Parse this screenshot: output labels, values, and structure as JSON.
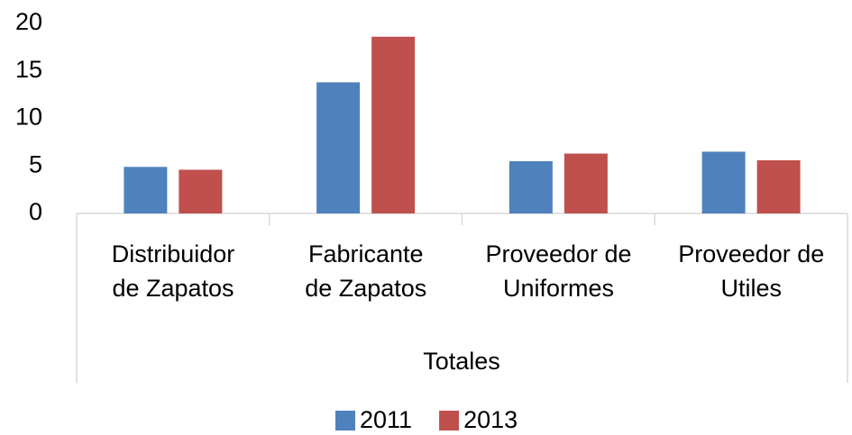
{
  "chart_data": {
    "type": "bar",
    "categories": [
      "Distribuidor\nde Zapatos",
      "Fabricante\nde Zapatos",
      "Proveedor de\nUniformes",
      "Proveedor de\nUtiles"
    ],
    "group_label": "Totales",
    "series": [
      {
        "name": "2011",
        "color": "#4f81bd",
        "values": [
          4.9,
          13.8,
          5.5,
          6.5
        ]
      },
      {
        "name": "2013",
        "color": "#c0504d",
        "values": [
          4.6,
          18.6,
          6.3,
          5.6
        ]
      }
    ],
    "ylim": [
      0,
      20
    ],
    "yticks": [
      0,
      5,
      10,
      15,
      20
    ],
    "grid": false
  }
}
